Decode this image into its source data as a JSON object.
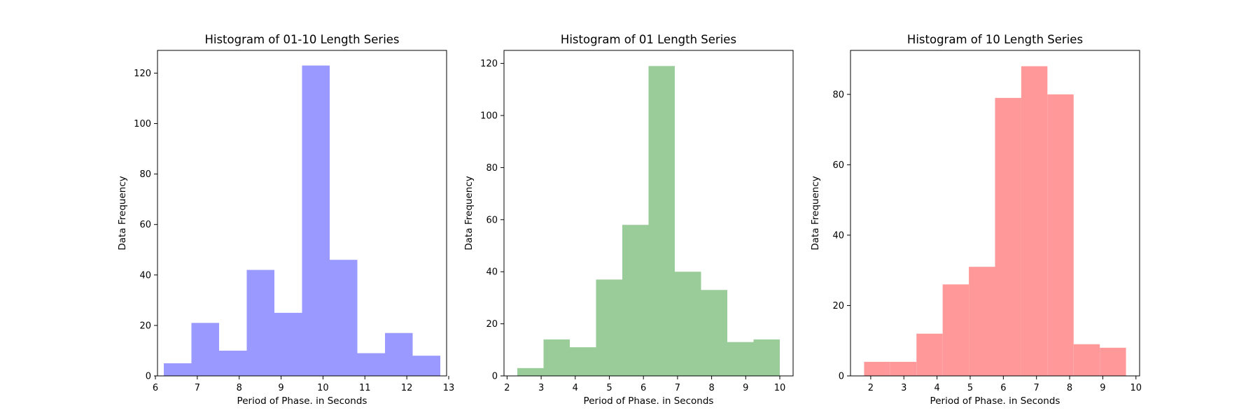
{
  "chart_data": [
    {
      "type": "bar",
      "title": "Histogram of 01-10 Length Series",
      "xlabel": "Period of Phase. in Seconds",
      "ylabel": "Data Frequency",
      "color": "#9999ff",
      "xlim": [
        6.05,
        12.95
      ],
      "ylim": [
        0,
        129
      ],
      "xticks": [
        6,
        7,
        8,
        9,
        10,
        11,
        12,
        13
      ],
      "yticks": [
        0,
        20,
        40,
        60,
        80,
        100,
        120
      ],
      "bin_edges": [
        6.2,
        6.86,
        7.52,
        8.18,
        8.84,
        9.5,
        10.16,
        10.82,
        11.48,
        12.14,
        12.8
      ],
      "values": [
        5,
        21,
        10,
        42,
        25,
        123,
        46,
        9,
        17,
        8
      ]
    },
    {
      "type": "bar",
      "title": "Histogram of 01 Length Series",
      "xlabel": "Period of Phase. in Seconds",
      "ylabel": "Data Frequency",
      "color": "#99cc99",
      "xlim": [
        1.91,
        10.39
      ],
      "ylim": [
        0,
        125
      ],
      "xticks": [
        2,
        3,
        4,
        5,
        6,
        7,
        8,
        9,
        10
      ],
      "yticks": [
        0,
        20,
        40,
        60,
        80,
        100,
        120
      ],
      "bin_edges": [
        2.3,
        3.07,
        3.84,
        4.61,
        5.38,
        6.15,
        6.92,
        7.69,
        8.46,
        9.23,
        10.0
      ],
      "values": [
        3,
        14,
        11,
        37,
        58,
        119,
        40,
        33,
        13,
        14
      ]
    },
    {
      "type": "bar",
      "title": "Histogram of 10 Length Series",
      "xlabel": "Period of Phase. in Seconds",
      "ylabel": "Data Frequency",
      "color": "#ff9999",
      "xlim": [
        1.39,
        10.11
      ],
      "ylim": [
        0,
        92.5
      ],
      "xticks": [
        2,
        3,
        4,
        5,
        6,
        7,
        8,
        9,
        10
      ],
      "yticks": [
        0,
        20,
        40,
        60,
        80
      ],
      "bin_edges": [
        1.8,
        2.59,
        3.38,
        4.17,
        4.96,
        5.75,
        6.54,
        7.33,
        8.12,
        8.91,
        9.7
      ],
      "values": [
        4,
        4,
        12,
        26,
        31,
        79,
        88,
        80,
        9,
        8
      ]
    }
  ]
}
